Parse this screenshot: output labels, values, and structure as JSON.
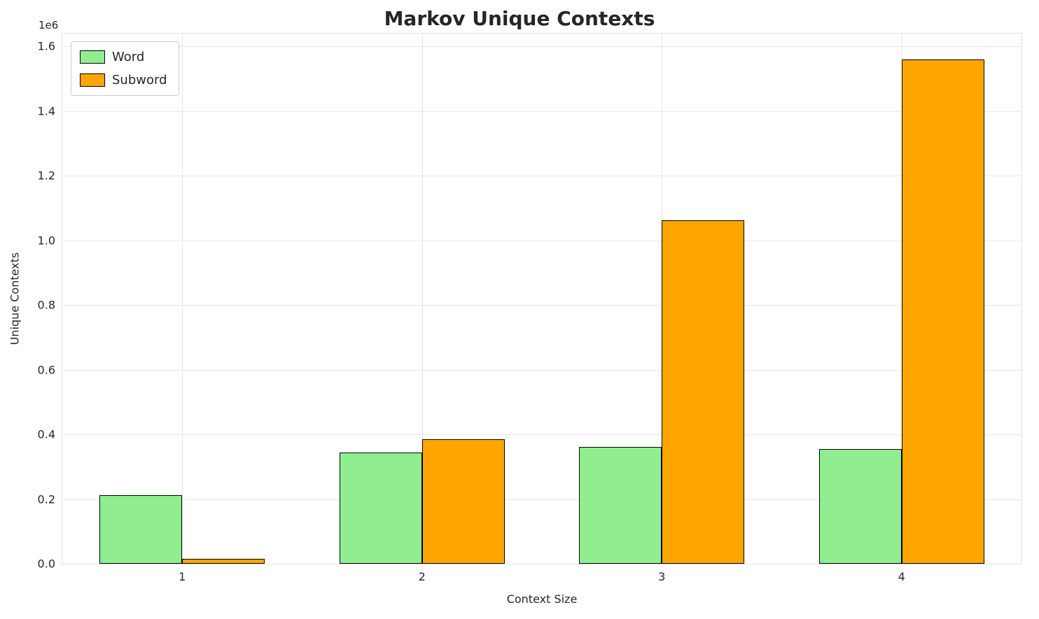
{
  "figure": {
    "title": "Markov Unique Contexts",
    "offset_text": "1e6"
  },
  "chart_data": {
    "type": "bar",
    "title": "Markov Unique Contexts",
    "xlabel": "Context Size",
    "ylabel": "Unique Contexts",
    "categories": [
      "1",
      "2",
      "3",
      "4"
    ],
    "series": [
      {
        "name": "Word",
        "color": "#90EE90",
        "values": [
          212000,
          345000,
          362000,
          355000
        ]
      },
      {
        "name": "Subword",
        "color": "#FFA500",
        "values": [
          15000,
          385000,
          1062000,
          1560000
        ]
      }
    ],
    "ylim": [
      0,
      1640000
    ],
    "yticks": [
      {
        "value": 0,
        "label": "0.0"
      },
      {
        "value": 200000,
        "label": "0.2"
      },
      {
        "value": 400000,
        "label": "0.4"
      },
      {
        "value": 600000,
        "label": "0.6"
      },
      {
        "value": 800000,
        "label": "0.8"
      },
      {
        "value": 1000000,
        "label": "1.0"
      },
      {
        "value": 1200000,
        "label": "1.2"
      },
      {
        "value": 1400000,
        "label": "1.4"
      },
      {
        "value": 1600000,
        "label": "1.6"
      }
    ],
    "y_offset_label": "1e6",
    "bar_width_frac": 0.345,
    "edge_color": "#000000",
    "grid": true,
    "grid_color": "#e7e7e7",
    "legend_position": "upper left",
    "background": "#ffffff",
    "text_color": "#262626"
  }
}
